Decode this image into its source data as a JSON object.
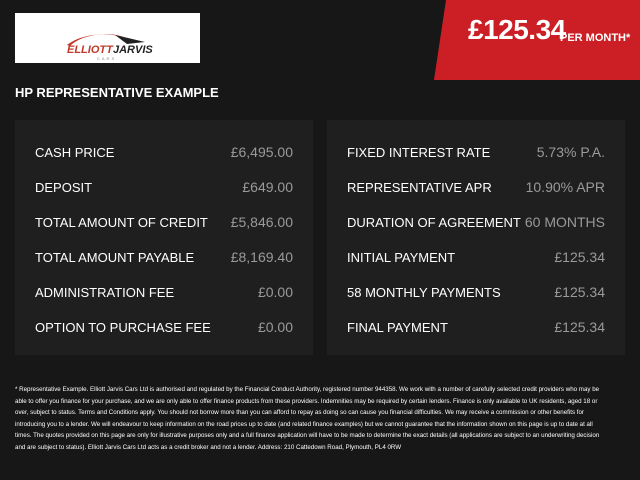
{
  "logo": {
    "text_main": "ELLIOTT",
    "text_accent": "JARVIS",
    "text_sub": "CARS"
  },
  "banner": {
    "price": "£125.34",
    "suffix": "PER MONTH*"
  },
  "colors": {
    "accent": "#cc1f25",
    "background": "#171717",
    "panel": "#1f1f1f"
  },
  "heading": "HP REPRESENTATIVE EXAMPLE",
  "left_rows": [
    {
      "label": "CASH PRICE",
      "value": "£6,495.00"
    },
    {
      "label": "DEPOSIT",
      "value": "£649.00"
    },
    {
      "label": "TOTAL AMOUNT OF CREDIT",
      "value": "£5,846.00"
    },
    {
      "label": "TOTAL AMOUNT PAYABLE",
      "value": "£8,169.40"
    },
    {
      "label": "ADMINISTRATION FEE",
      "value": "£0.00"
    },
    {
      "label": "OPTION TO PURCHASE FEE",
      "value": "£0.00"
    }
  ],
  "right_rows": [
    {
      "label": "FIXED INTEREST RATE",
      "value": "5.73% P.A."
    },
    {
      "label": "REPRESENTATIVE APR",
      "value": "10.90% APR"
    },
    {
      "label": "DURATION OF AGREEMENT",
      "value": "60 MONTHS"
    },
    {
      "label": "INITIAL PAYMENT",
      "value": "£125.34"
    },
    {
      "label": "58 MONTHLY PAYMENTS",
      "value": "£125.34"
    },
    {
      "label": "FINAL PAYMENT",
      "value": "£125.34"
    }
  ],
  "footer": "* Representative Example. Elliott Jarvis Cars Ltd is authorised and regulated by the Financial Conduct Authority, registered number 944358. We work with a number of carefully selected credit providers who may be able to offer you finance for your purchase, and we are only able to offer finance products from these providers. Indemnities may be required by certain lenders. Finance is only available to UK residents, aged 18 or over, subject to status. Terms and Conditions apply. You should not borrow more than you can afford to repay as doing so can cause you financial difficulties. We may receive a commission or other benefits for introducing you to a lender. We will endeavour to keep information on the road prices up to date (and related finance examples) but we cannot guarantee that the information shown on this page is up to date at all times. The quotes provided on this page are only for illustrative purposes only and a full finance application will have to be made to determine the exact details (all applications are subject to an underwriting decision and are subject to status). Elliott Jarvis Cars Ltd acts as a credit broker and not a lender. Address:  210 Cattedown Road, Plymouth, PL4 0RW"
}
